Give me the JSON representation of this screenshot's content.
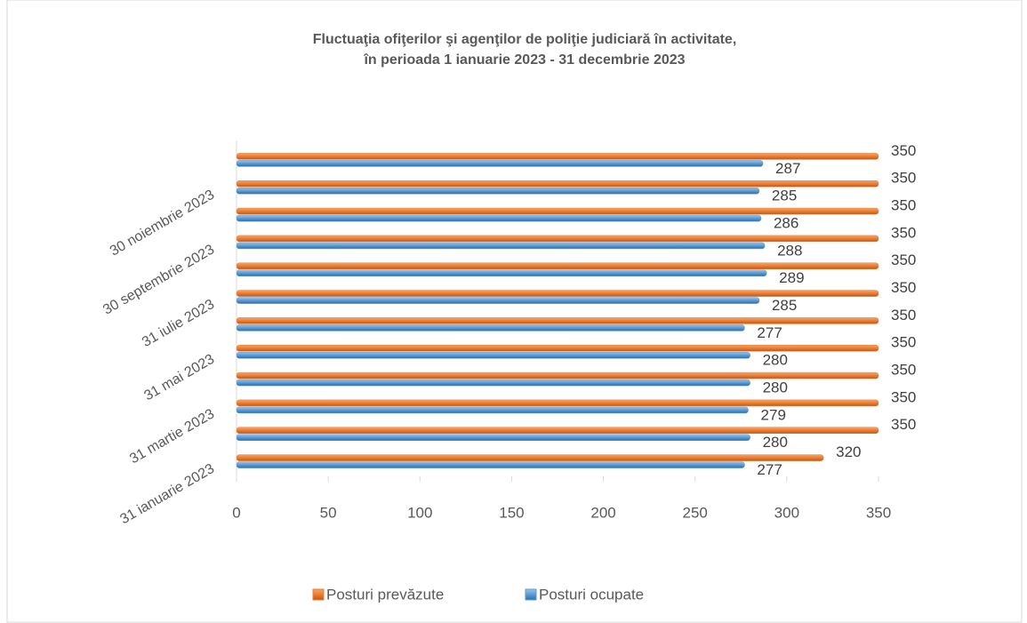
{
  "chart_data": {
    "type": "hbar",
    "title": [
      "Fluctuaţia ofiţerilor şi agenţilor de poliţie judiciară în activitate,",
      "în perioada 1 ianuarie 2023 - 31 decembrie 2023"
    ],
    "categories": [
      "31 ianuarie 2023",
      null,
      "31 martie 2023",
      null,
      "31 mai 2023",
      null,
      "31 iulie 2023",
      null,
      "30 septembrie 2023",
      null,
      "30 noiembrie 2023",
      null
    ],
    "series": [
      {
        "name": "Posturi prevăzute",
        "color": "#ed7d31",
        "values": [
          320,
          350,
          350,
          350,
          350,
          350,
          350,
          350,
          350,
          350,
          350,
          350
        ]
      },
      {
        "name": "Posturi ocupate",
        "color": "#5b9bd5",
        "values": [
          277,
          280,
          279,
          280,
          280,
          277,
          285,
          289,
          288,
          286,
          285,
          287
        ]
      }
    ],
    "xlim": [
      0,
      350
    ],
    "xticks": [
      0,
      50,
      100,
      150,
      200,
      250,
      300,
      350
    ],
    "legend": "bottom",
    "grid": false
  }
}
